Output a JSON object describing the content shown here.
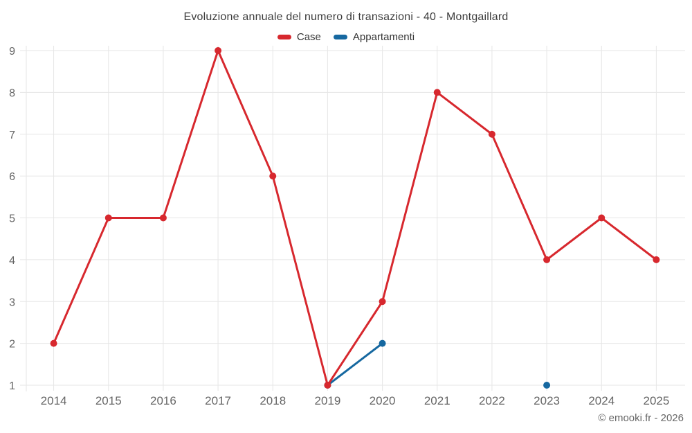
{
  "title": "Evoluzione annuale del numero di transazioni - 40 - Montgaillard",
  "legend": {
    "items": [
      {
        "label": "Case",
        "color": "#d7282e"
      },
      {
        "label": "Appartamenti",
        "color": "#1668a0"
      }
    ]
  },
  "watermark": "© emooki.fr - 2026",
  "colors": {
    "case_red": "#d7282e",
    "appartamenti_blue": "#1668a0",
    "gridline": "#e6e6e6",
    "axis_text": "#666666",
    "title_text": "#3c3c3c"
  },
  "chart_data": {
    "type": "line",
    "title": "Evoluzione annuale del numero di transazioni - 40 - Montgaillard",
    "categories": [
      "2014",
      "2015",
      "2016",
      "2017",
      "2018",
      "2019",
      "2020",
      "2021",
      "2022",
      "2023",
      "2024",
      "2025"
    ],
    "series": [
      {
        "name": "Appartamenti",
        "color": "#1668a0",
        "values": [
          null,
          null,
          null,
          null,
          null,
          1,
          2,
          null,
          null,
          1,
          null,
          null
        ]
      },
      {
        "name": "Case",
        "color": "#d7282e",
        "values": [
          2,
          5,
          5,
          9,
          6,
          1,
          3,
          8,
          7,
          4,
          5,
          4
        ]
      }
    ],
    "xlabel": "",
    "ylabel": "",
    "ylim": [
      1,
      9
    ],
    "yticks": [
      1,
      2,
      3,
      4,
      5,
      6,
      7,
      8,
      9
    ],
    "grid": true,
    "legend_position": "top",
    "watermark": "© emooki.fr - 2026"
  }
}
